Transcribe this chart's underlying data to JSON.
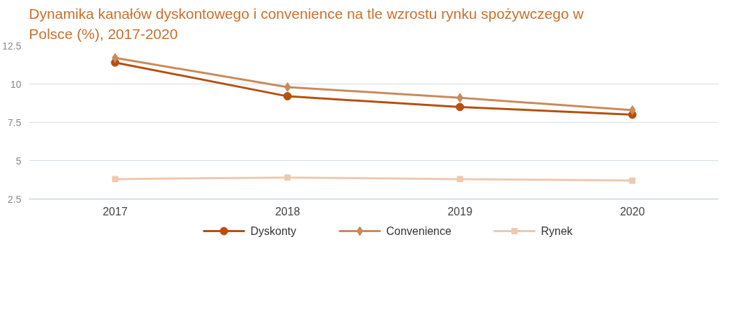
{
  "chart_data": {
    "type": "line",
    "title": "Dynamika kanałów dyskontowego i convenience na tle wzrostu rynku spożywczego w Polsce (%), 2017-2020",
    "categories": [
      "2017",
      "2018",
      "2019",
      "2020"
    ],
    "series": [
      {
        "name": "Dyskonty",
        "color": "#b5500f",
        "marker": "circle",
        "values": [
          11.4,
          9.2,
          8.5,
          8.0
        ]
      },
      {
        "name": "Convenience",
        "color": "#c98a5c",
        "marker": "diamond",
        "values": [
          11.7,
          9.8,
          9.1,
          8.3
        ]
      },
      {
        "name": "Rynek",
        "color": "#edc9b0",
        "marker": "square",
        "values": [
          3.8,
          3.9,
          3.8,
          3.7
        ]
      }
    ],
    "ylim": [
      2.5,
      12.5
    ],
    "yticks": [
      {
        "value": 2.5,
        "label": "2.5"
      },
      5,
      {
        "value": 7.5,
        "label": "7.5"
      },
      10,
      {
        "value": 12.5,
        "label": "12.5"
      }
    ],
    "grid": "y",
    "legend": "bottom",
    "line_style": "solid"
  }
}
